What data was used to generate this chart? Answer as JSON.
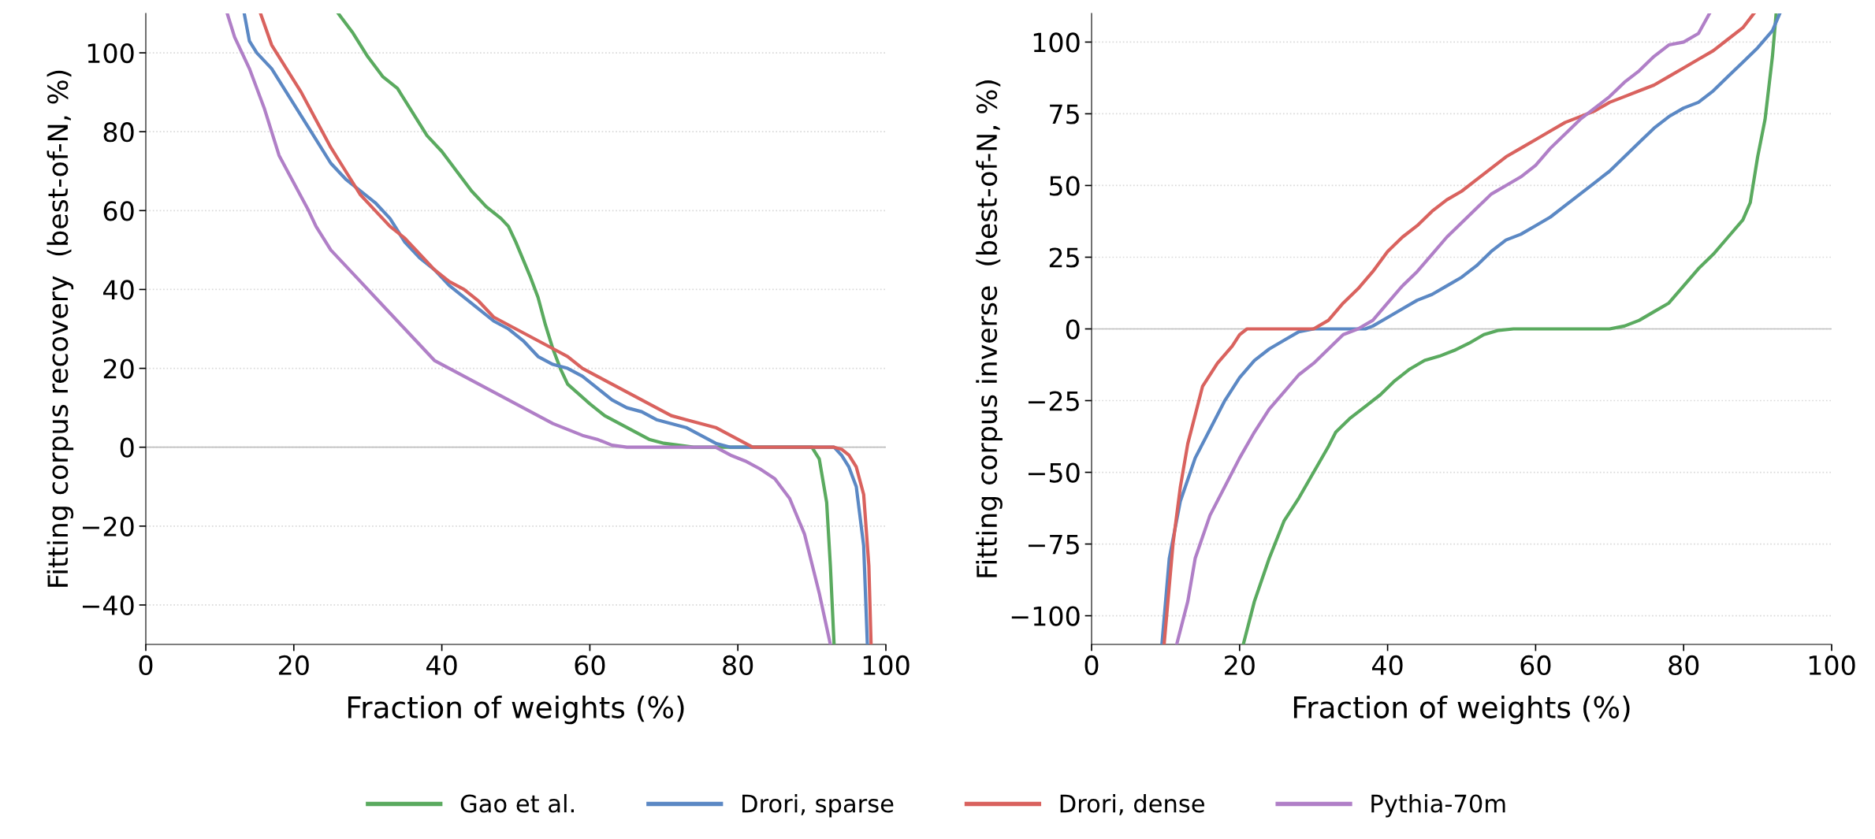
{
  "chart_data": [
    {
      "type": "line",
      "xlabel": "Fraction of weights (%)",
      "ylabel": "Fitting corpus recovery  (best-of-N, %)",
      "xlim": [
        0,
        100
      ],
      "xticks": [
        0,
        20,
        40,
        60,
        80,
        100
      ],
      "ylim": [
        -50,
        110
      ],
      "yticks": [
        -40,
        -20,
        0,
        20,
        40,
        60,
        80,
        100
      ],
      "grid": "y",
      "legend": "bottom",
      "line_style": "solid",
      "ref_lines": [
        {
          "axis": "y",
          "value": 0,
          "color": "#c0c0c0"
        }
      ],
      "series": [
        {
          "name": "Gao et al.",
          "color": "#5aaa5f",
          "x": [
            26,
            28,
            30,
            32,
            34,
            36,
            38,
            40,
            42,
            44,
            46,
            48,
            49,
            50,
            52,
            53,
            54,
            55,
            56,
            57,
            60,
            62,
            64,
            66,
            68,
            70,
            74,
            90,
            91,
            92,
            92.5,
            93
          ],
          "values": [
            110,
            105,
            99,
            94,
            91,
            85,
            79,
            75,
            70,
            65,
            61,
            58,
            56,
            52,
            43,
            38,
            31,
            25,
            20,
            16,
            11,
            8,
            6,
            4,
            2,
            1,
            0,
            0,
            -3,
            -14,
            -30,
            -50
          ]
        },
        {
          "name": "Drori, sparse",
          "color": "#5b88c4",
          "x": [
            13.3,
            14,
            15,
            17,
            19,
            21,
            23,
            25,
            27,
            29,
            31,
            33,
            35,
            37,
            39,
            41,
            43,
            45,
            47,
            49,
            51,
            53,
            55,
            57,
            59,
            61,
            63,
            65,
            67,
            69,
            71,
            73,
            75,
            77,
            79,
            93,
            94,
            95,
            96,
            97,
            97.5
          ],
          "values": [
            110,
            103,
            100,
            96,
            90,
            84,
            78,
            72,
            68,
            65,
            62,
            58,
            52,
            48,
            45,
            41,
            38,
            35,
            32,
            30,
            27,
            23,
            21,
            20,
            18,
            15,
            12,
            10,
            9,
            7,
            6,
            5,
            3,
            1,
            0,
            0,
            -2,
            -5,
            -10,
            -25,
            -50
          ]
        },
        {
          "name": "Drori, dense",
          "color": "#d9625e",
          "x": [
            15.5,
            17,
            19,
            21,
            23,
            25,
            27,
            29,
            31,
            33,
            35,
            37,
            39,
            41,
            43,
            45,
            47,
            49,
            51,
            53,
            55,
            57,
            59,
            61,
            63,
            65,
            67,
            69,
            71,
            73,
            75,
            77,
            78,
            80,
            82,
            93,
            94,
            95,
            96,
            97,
            97.7,
            98
          ],
          "values": [
            110,
            102,
            96,
            90,
            83,
            76,
            70,
            64,
            60,
            56,
            53,
            49,
            45,
            42,
            40,
            37,
            33,
            31,
            29,
            27,
            25,
            23,
            20,
            18,
            16,
            14,
            12,
            10,
            8,
            7,
            6,
            5,
            4,
            2,
            0,
            0,
            -0.5,
            -2,
            -5,
            -12,
            -30,
            -50
          ]
        },
        {
          "name": "Pythia-70m",
          "color": "#b07fc7",
          "x": [
            11,
            12,
            14,
            15,
            16,
            17,
            18,
            20,
            22,
            23,
            25,
            27,
            29,
            31,
            33,
            35,
            37,
            39,
            41,
            43,
            45,
            47,
            49,
            51,
            53,
            55,
            57,
            59,
            61,
            63,
            65,
            77,
            79,
            81,
            83,
            85,
            87,
            89,
            91,
            92.5
          ],
          "values": [
            110,
            104,
            96,
            91,
            86,
            80,
            74,
            67,
            60,
            56,
            50,
            46,
            42,
            38,
            34,
            30,
            26,
            22,
            20,
            18,
            16,
            14,
            12,
            10,
            8,
            6,
            4.5,
            3,
            2,
            0.5,
            0,
            0,
            -2,
            -3.5,
            -5.5,
            -8,
            -13,
            -22,
            -37,
            -50
          ]
        }
      ]
    },
    {
      "type": "line",
      "xlabel": "Fraction of weights (%)",
      "ylabel": "Fitting corpus inverse  (best-of-N, %)",
      "xlim": [
        0,
        100
      ],
      "xticks": [
        0,
        20,
        40,
        60,
        80,
        100
      ],
      "ylim": [
        -110,
        110
      ],
      "yticks": [
        -100,
        -75,
        -50,
        -25,
        0,
        25,
        50,
        75,
        100
      ],
      "grid": "y",
      "legend": false,
      "line_style": "solid",
      "ref_lines": [
        {
          "axis": "y",
          "value": 0,
          "color": "#c0c0c0"
        }
      ],
      "series": [
        {
          "color": "#5aaa5f",
          "x": [
            20.5,
            22,
            24,
            26,
            28,
            30,
            32,
            33,
            35,
            37,
            39,
            41,
            43,
            45,
            47,
            49,
            51,
            53,
            55,
            57,
            70,
            72,
            74,
            76,
            78,
            80,
            82,
            84,
            86,
            88,
            89,
            90,
            91,
            92,
            92.5
          ],
          "values": [
            -110,
            -95,
            -80,
            -67,
            -59,
            -50,
            -41,
            -36,
            -31,
            -27,
            -23,
            -18,
            -14,
            -11,
            -9.5,
            -7.5,
            -5,
            -2,
            -0.5,
            0,
            0,
            1,
            3,
            6,
            9,
            15,
            21,
            26,
            32,
            38,
            44,
            60,
            73,
            95,
            110
          ]
        },
        {
          "color": "#5b88c4",
          "x": [
            9.5,
            10.5,
            12,
            14,
            16,
            18,
            20,
            22,
            24,
            26,
            28,
            30,
            37,
            38,
            40,
            42,
            44,
            46,
            48,
            50,
            52,
            54,
            56,
            58,
            60,
            62,
            64,
            66,
            68,
            70,
            72,
            74,
            76,
            78,
            80,
            82,
            84,
            86,
            88,
            90,
            92,
            93
          ],
          "values": [
            -110,
            -80,
            -60,
            -45,
            -35,
            -25,
            -17,
            -11,
            -7,
            -4,
            -1,
            0,
            0,
            1,
            4,
            7,
            10,
            12,
            15,
            18,
            22,
            27,
            31,
            33,
            36,
            39,
            43,
            47,
            51,
            55,
            60,
            65,
            70,
            74,
            77,
            79,
            83,
            88,
            93,
            98,
            104,
            110
          ]
        },
        {
          "color": "#d9625e",
          "x": [
            9.8,
            11,
            12,
            13,
            14,
            15,
            17,
            19,
            20,
            21,
            30,
            32,
            34,
            36,
            38,
            40,
            42,
            44,
            46,
            48,
            50,
            52,
            54,
            56,
            58,
            60,
            62,
            64,
            66,
            68,
            70,
            72,
            74,
            76,
            78,
            80,
            82,
            84,
            86,
            88,
            89.5
          ],
          "values": [
            -110,
            -75,
            -55,
            -40,
            -30,
            -20,
            -12,
            -6,
            -2,
            0,
            0,
            3,
            9,
            14,
            20,
            27,
            32,
            36,
            41,
            45,
            48,
            52,
            56,
            60,
            63,
            66,
            69,
            72,
            74,
            76,
            79,
            81,
            83,
            85,
            88,
            91,
            94,
            97,
            101,
            105,
            110
          ]
        },
        {
          "color": "#b07fc7",
          "x": [
            11.5,
            13,
            14,
            16,
            18,
            20,
            22,
            24,
            26,
            28,
            30,
            32,
            34,
            36,
            38,
            40,
            42,
            44,
            46,
            48,
            50,
            52,
            54,
            56,
            58,
            60,
            62,
            64,
            66,
            68,
            70,
            72,
            74,
            76,
            78,
            80,
            82,
            83.5
          ],
          "values": [
            -110,
            -95,
            -80,
            -65,
            -55,
            -45,
            -36,
            -28,
            -22,
            -16,
            -12,
            -7,
            -2,
            0,
            3,
            9,
            15,
            20,
            26,
            32,
            37,
            42,
            47,
            50,
            53,
            57,
            63,
            68,
            73,
            77,
            81,
            86,
            90,
            95,
            99,
            100,
            103,
            110
          ]
        }
      ]
    }
  ]
}
